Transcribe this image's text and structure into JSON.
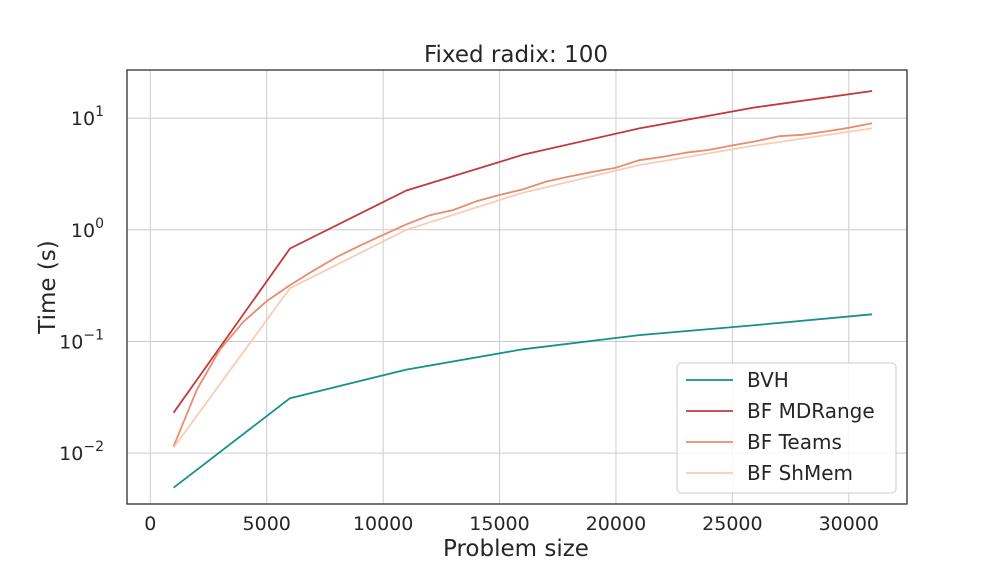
{
  "chart_data": {
    "type": "line",
    "title": "Fixed radix: 100",
    "xlabel": "Problem size",
    "ylabel": "Time (s)",
    "yscale": "log",
    "xlim": [
      -1000,
      32500
    ],
    "ylim": [
      0.0035,
      27
    ],
    "xticks": [
      0,
      5000,
      10000,
      15000,
      20000,
      25000,
      30000
    ],
    "xtick_labels": [
      "0",
      "5000",
      "10000",
      "15000",
      "20000",
      "25000",
      "30000"
    ],
    "yticks": [
      0.01,
      0.1,
      1,
      10
    ],
    "ytick_labels": [
      {
        "base": "10",
        "exp": "−2"
      },
      {
        "base": "10",
        "exp": "−1"
      },
      {
        "base": "10",
        "exp": "0"
      },
      {
        "base": "10",
        "exp": "1"
      }
    ],
    "grid": true,
    "legend_position": "lower-right",
    "series": [
      {
        "name": "BVH",
        "color": "#15918d",
        "x": [
          1000,
          6000,
          11000,
          16000,
          21000,
          26000,
          31000
        ],
        "y": [
          0.0049,
          0.031,
          0.056,
          0.085,
          0.114,
          0.14,
          0.175
        ]
      },
      {
        "name": "BF MDRange",
        "color": "#c0393c",
        "x": [
          1000,
          6000,
          11000,
          16000,
          21000,
          26000,
          31000
        ],
        "y": [
          0.023,
          0.68,
          2.25,
          4.7,
          8.1,
          12.5,
          17.5
        ]
      },
      {
        "name": "BF Teams",
        "color": "#e78c6f",
        "x": [
          1000,
          2000,
          3000,
          4000,
          5000,
          6000,
          7000,
          8000,
          9000,
          10000,
          11000,
          12000,
          13000,
          14000,
          15000,
          16000,
          17000,
          18000,
          19000,
          20000,
          21000,
          22000,
          23000,
          24000,
          25000,
          26000,
          27000,
          28000,
          29000,
          30000,
          31000
        ],
        "y": [
          0.0115,
          0.037,
          0.085,
          0.15,
          0.23,
          0.32,
          0.43,
          0.57,
          0.72,
          0.9,
          1.12,
          1.35,
          1.5,
          1.8,
          2.05,
          2.3,
          2.7,
          3.0,
          3.3,
          3.6,
          4.2,
          4.5,
          4.9,
          5.2,
          5.7,
          6.2,
          6.9,
          7.1,
          7.6,
          8.2,
          9.0
        ]
      },
      {
        "name": "BF ShMem",
        "color": "#f8cdb4",
        "x": [
          1000,
          6000,
          11000,
          16000,
          21000,
          26000,
          31000
        ],
        "y": [
          0.0112,
          0.3,
          1.0,
          2.15,
          3.8,
          5.7,
          8.1
        ]
      }
    ]
  }
}
